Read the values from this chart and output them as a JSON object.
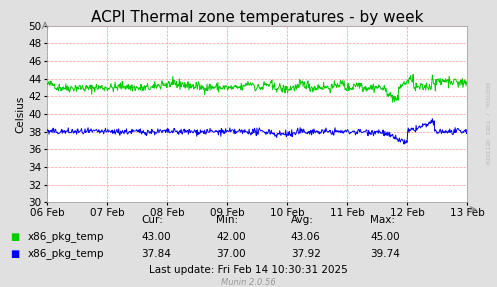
{
  "title": "ACPI Thermal zone temperatures - by week",
  "ylabel": "Celsius",
  "bg_color": "#e0e0e0",
  "plot_bg_color": "#ffffff",
  "grid_color": "#ff9999",
  "ylim": [
    30,
    50
  ],
  "xtick_labels": [
    "06 Feb",
    "07 Feb",
    "08 Feb",
    "09 Feb",
    "10 Feb",
    "11 Feb",
    "12 Feb",
    "13 Feb"
  ],
  "line1_color": "#00cc00",
  "line2_color": "#0000ff",
  "line1_base": 43.0,
  "line2_base": 38.0,
  "legend": [
    {
      "label": "x86_pkg_temp",
      "color": "#00cc00"
    },
    {
      "label": "x86_pkg_temp",
      "color": "#0000ff"
    }
  ],
  "stats_headers": [
    "Cur:",
    "Min:",
    "Avg:",
    "Max:"
  ],
  "stats_line1": [
    "43.00",
    "42.00",
    "43.06",
    "45.00"
  ],
  "stats_line2": [
    "37.84",
    "37.00",
    "37.92",
    "39.74"
  ],
  "last_update": "Last update: Fri Feb 14 10:30:31 2025",
  "munin_version": "Munin 2.0.56",
  "rrdtool_text": "RRDTOOL / TOBI OETIKER",
  "title_fontsize": 11,
  "axis_fontsize": 7.5,
  "stats_fontsize": 7.5
}
